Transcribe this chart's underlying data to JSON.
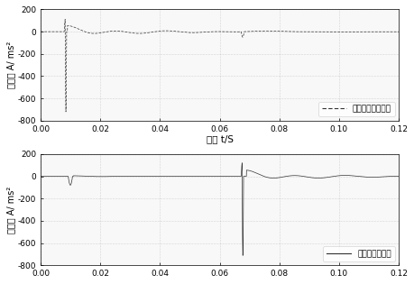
{
  "xlim": [
    0.0,
    0.12
  ],
  "ylim": [
    -800,
    200
  ],
  "yticks": [
    -800,
    -600,
    -400,
    -200,
    0,
    200
  ],
  "xticks": [
    0.0,
    0.02,
    0.04,
    0.06,
    0.08,
    0.1,
    0.12
  ],
  "xlabel": "时间 t/S",
  "ylabel": "加速度 A/ ms²",
  "legend1": "前轴笱振动加速度",
  "legend2": "后轴笱振动加速",
  "line_color": "#333333",
  "background": "#f8f8f8"
}
